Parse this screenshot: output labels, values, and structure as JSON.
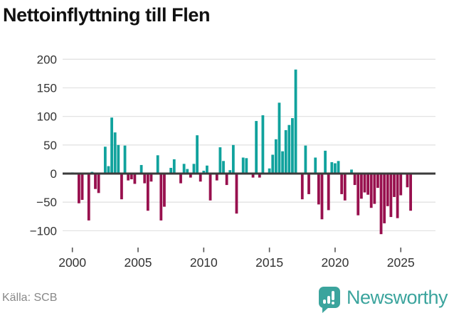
{
  "title": "Nettoinflyttning till Flen",
  "source": {
    "label": "Källa: SCB"
  },
  "branding": {
    "name": "Newsworthy",
    "badge_icon": "bar-chart-exclamation-badge-icon"
  },
  "colors": {
    "positive": "#10a29d",
    "negative": "#98104e",
    "grid": "#e3e3e3",
    "zero_line": "#3b3b3b",
    "axis_text": "#333333",
    "tick_mark": "#555555",
    "title_text": "#111111",
    "source_text": "#888888",
    "brand_teal": "#3ba49d",
    "background": "#ffffff"
  },
  "chart_data": {
    "type": "bar",
    "title": "Nettoinflyttning till Flen",
    "unit": "net migration, persons per quarter",
    "frequency": "quarterly",
    "start": "2000 Q1",
    "end": "2025 Q4",
    "grid": "horizontal",
    "legend": "none",
    "x_tick_labels": [
      "2000",
      "2005",
      "2010",
      "2015",
      "2020",
      "2025"
    ],
    "y_ticks": [
      200,
      150,
      100,
      50,
      0,
      -50,
      -100
    ],
    "y_tick_labels": [
      "200",
      "150",
      "100",
      "50",
      "0",
      "−50",
      "−100"
    ],
    "ylim": [
      -115,
      210
    ],
    "series": [
      {
        "name": "Nettoinflyttning",
        "values": [
          2,
          0,
          -52,
          -46,
          0,
          -82,
          3,
          -27,
          -34,
          0,
          47,
          13,
          98,
          72,
          50,
          -45,
          49,
          -12,
          -10,
          -18,
          0,
          15,
          -17,
          -65,
          -14,
          0,
          32,
          -82,
          -58,
          0,
          10,
          25,
          0,
          -17,
          17,
          8,
          -7,
          17,
          67,
          -14,
          5,
          14,
          -47,
          0,
          -12,
          46,
          22,
          -20,
          6,
          50,
          -70,
          0,
          28,
          27,
          0,
          -7,
          92,
          -7,
          102,
          0,
          9,
          33,
          60,
          124,
          39,
          76,
          85,
          97,
          182,
          0,
          -45,
          49,
          -36,
          0,
          28,
          -54,
          -80,
          40,
          -64,
          20,
          18,
          22,
          -36,
          -47,
          0,
          7,
          -20,
          -73,
          -44,
          -33,
          -37,
          -60,
          -53,
          -25,
          -106,
          -87,
          -57,
          -76,
          -41,
          -78,
          -38,
          0,
          -24,
          -65
        ]
      }
    ]
  }
}
